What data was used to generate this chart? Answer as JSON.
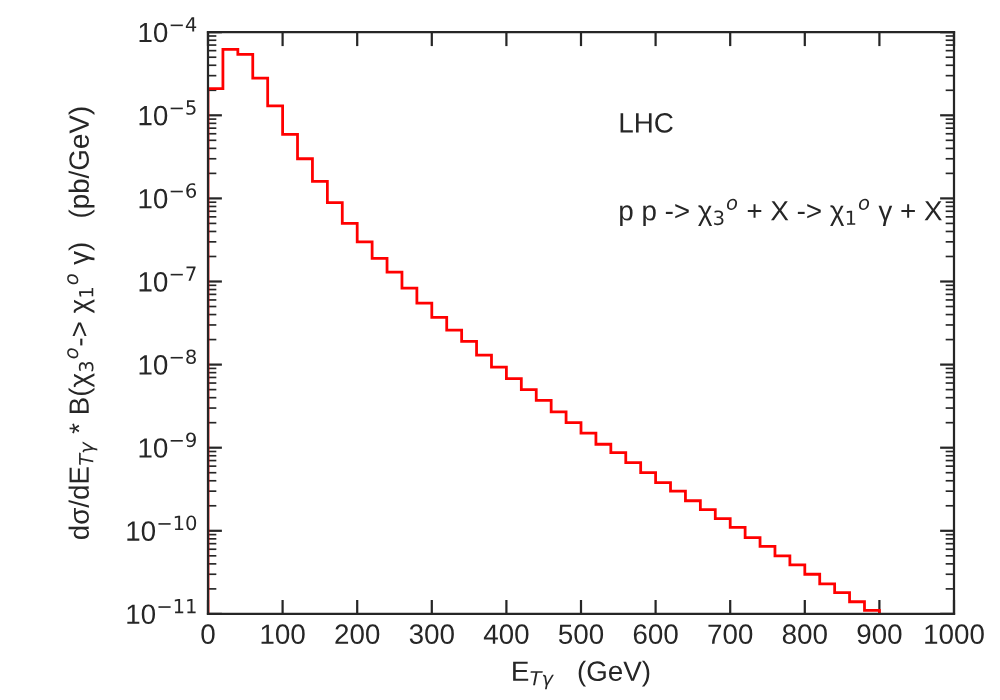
{
  "chart_data": {
    "type": "histogram",
    "xlabel": "E$_{Tγ}$   (GeV)",
    "ylabel": "dσ/dE$_{Tγ}$ * B(χ$_{3}$$^{o}$-> χ$_{1}$$^{o}$ γ)   (pb/GeV)",
    "annotations": [
      "LHC",
      "p p -> χ$_{3}$$^{o}$ + X -> χ$_{1}$$^{o}$ γ + X"
    ],
    "bins": [
      0,
      20,
      40,
      60,
      80,
      100,
      120,
      140,
      160,
      180,
      200,
      220,
      240,
      260,
      280,
      300,
      320,
      340,
      360,
      380,
      400,
      420,
      440,
      460,
      480,
      500,
      520,
      540,
      560,
      580,
      600,
      620,
      640,
      660,
      680,
      700,
      720,
      740,
      760,
      780,
      800,
      820,
      840,
      860,
      880,
      900
    ],
    "values": [
      2.1e-05,
      6.2e-05,
      5.4e-05,
      2.8e-05,
      1.3e-05,
      5.9e-06,
      3e-06,
      1.6e-06,
      8.9e-07,
      5e-07,
      3e-07,
      1.9e-07,
      1.3e-07,
      8.3e-08,
      5.5e-08,
      3.7e-08,
      2.6e-08,
      1.9e-08,
      1.3e-08,
      9.3e-09,
      6.8e-09,
      5e-09,
      3.7e-09,
      2.7e-09,
      2e-09,
      1.5e-09,
      1.1e-09,
      8.7e-10,
      6.6e-10,
      5e-10,
      3.8e-10,
      3e-10,
      2.3e-10,
      1.8e-10,
      1.4e-10,
      1.1e-10,
      8.3e-11,
      6.5e-11,
      5e-11,
      3.9e-11,
      3e-11,
      2.3e-11,
      1.8e-11,
      1.4e-11,
      1.1e-11
    ],
    "color": "#ff0000",
    "log": "y",
    "xlim": [
      0,
      1000
    ],
    "xticks": [
      0,
      100,
      200,
      300,
      400,
      500,
      600,
      700,
      800,
      900,
      1000
    ],
    "ylim": [
      1e-11,
      0.0001
    ],
    "yticks": [
      {
        "value": 1e-11,
        "label": "10$^{−11}$"
      },
      {
        "value": 1e-10,
        "label": "10$^{−10}$"
      },
      {
        "value": 1e-09,
        "label": "10$^{−9}$"
      },
      {
        "value": 1e-08,
        "label": "10$^{−8}$"
      },
      {
        "value": 1e-07,
        "label": "10$^{−7}$"
      },
      {
        "value": 1e-06,
        "label": "10$^{−6}$"
      },
      {
        "value": 1e-05,
        "label": "10$^{−5}$"
      },
      {
        "value": 0.0001,
        "label": "10$^{−4}$"
      }
    ],
    "grid": false,
    "legend": false
  }
}
